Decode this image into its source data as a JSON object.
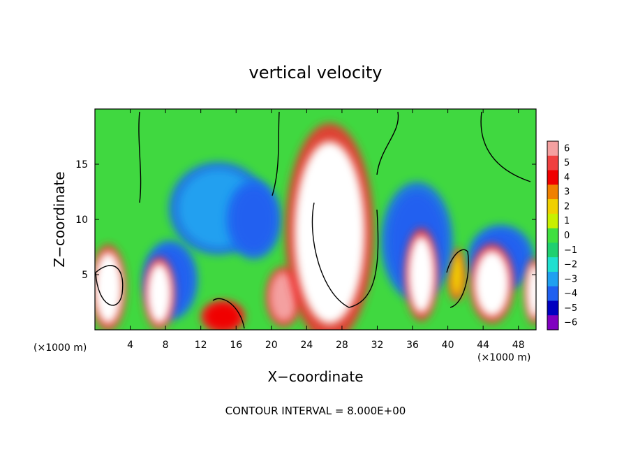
{
  "chart_data": {
    "type": "heatmap",
    "title": "vertical velocity",
    "xlabel": "X−coordinate",
    "ylabel": "Z−coordinate",
    "x_unit_label": "(×1000 m)",
    "x_unit_label_right": "(×1000 m)",
    "xlim": [
      0,
      50
    ],
    "ylim": [
      0,
      20
    ],
    "x_ticks": [
      4,
      8,
      12,
      16,
      20,
      24,
      28,
      32,
      36,
      40,
      44,
      48
    ],
    "x_tick_labels": [
      "4",
      "8",
      "12",
      "16",
      "20",
      "24",
      "28",
      "32",
      "36",
      "40",
      "44",
      "48"
    ],
    "y_ticks": [
      5,
      10,
      15
    ],
    "y_tick_labels": [
      "5",
      "10",
      "15"
    ],
    "colorbar": {
      "levels": [
        6,
        5,
        4,
        3,
        2,
        1,
        0,
        -1,
        -2,
        -3,
        -4,
        -5,
        -6
      ],
      "labels": [
        "6",
        "5",
        "4",
        "3",
        "2",
        "1",
        "0",
        "−1",
        "−2",
        "−3",
        "−4",
        "−5",
        "−6"
      ],
      "colors": [
        "#f4a0a0",
        "#f04040",
        "#f00000",
        "#f08000",
        "#f0d000",
        "#c8f000",
        "#40e040",
        "#20d070",
        "#20e0d0",
        "#20a0f0",
        "#2060f0",
        "#0000c0",
        "#8000c0"
      ]
    },
    "background_color": "#40d840",
    "cells": [
      {
        "x": 1.5,
        "z": 3.8,
        "w": 3.2,
        "h": 6.5,
        "value": 9
      },
      {
        "x": 7.3,
        "z": 3.3,
        "w": 2.8,
        "h": 5.5,
        "value": 9
      },
      {
        "x": 26.6,
        "z": 8.8,
        "w": 8.0,
        "h": 16.5,
        "value": 9
      },
      {
        "x": 37.0,
        "z": 5.0,
        "w": 3.0,
        "h": 7.0,
        "value": 9
      },
      {
        "x": 45.0,
        "z": 4.2,
        "w": 4.0,
        "h": 6.0,
        "value": 9
      },
      {
        "x": 49.8,
        "z": 3.5,
        "w": 1.8,
        "h": 5.0,
        "value": 8
      },
      {
        "x": 21.4,
        "z": 3.0,
        "w": 3.2,
        "h": 4.5,
        "value": 6
      },
      {
        "x": 14.5,
        "z": 1.2,
        "w": 4.0,
        "h": 2.4,
        "value": 4
      },
      {
        "x": 41.0,
        "z": 5.0,
        "w": 1.5,
        "h": 4.0,
        "value": 2
      },
      {
        "x": 14.0,
        "z": 11.0,
        "w": 9.0,
        "h": 7.0,
        "value": -3
      },
      {
        "x": 18.0,
        "z": 10.0,
        "w": 5.0,
        "h": 6.0,
        "value": -4
      },
      {
        "x": 36.5,
        "z": 8.0,
        "w": 6.5,
        "h": 9.0,
        "value": -4
      },
      {
        "x": 46.0,
        "z": 6.5,
        "w": 6.0,
        "h": 5.0,
        "value": -4
      },
      {
        "x": 8.5,
        "z": 4.5,
        "w": 5.0,
        "h": 6.0,
        "value": -4
      }
    ],
    "annotation": "CONTOUR INTERVAL = 8.000E+00"
  }
}
